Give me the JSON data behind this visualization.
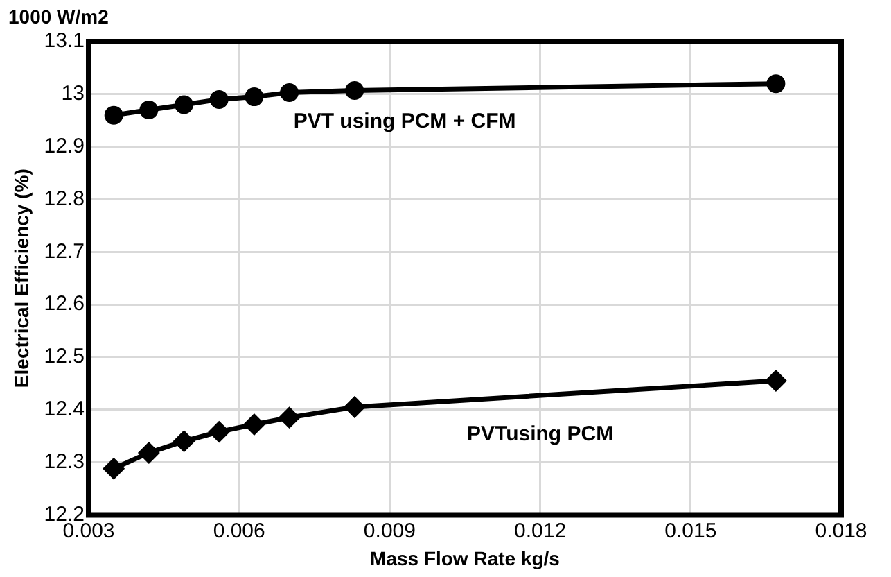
{
  "chart_data": {
    "type": "line",
    "title": "1000 W/m2",
    "xlabel": "Mass Flow Rate kg/s",
    "ylabel": "Electrical Efficiency (%)",
    "x": [
      0.0035,
      0.0042,
      0.0049,
      0.0056,
      0.0063,
      0.007,
      0.0083,
      0.0167
    ],
    "series": [
      {
        "name": "PVT using PCM + CFM",
        "color": "#000000",
        "marker": "circle",
        "values": [
          12.96,
          12.97,
          12.98,
          12.99,
          12.995,
          13.003,
          13.007,
          13.02
        ]
      },
      {
        "name": "PVTusing PCM",
        "color": "#000000",
        "marker": "diamond",
        "values": [
          12.288,
          12.318,
          12.34,
          12.358,
          12.372,
          12.385,
          12.405,
          12.455
        ]
      }
    ],
    "xlim": [
      0.003,
      0.018
    ],
    "xticks": [
      0.003,
      0.006,
      0.009,
      0.012,
      0.015,
      0.018
    ],
    "ylim": [
      12.2,
      13.1
    ],
    "yticks": [
      12.2,
      12.3,
      12.4,
      12.5,
      12.6,
      12.7,
      12.8,
      12.9,
      13,
      13.1
    ],
    "grid": true,
    "legend": false,
    "line_style": "solid"
  }
}
